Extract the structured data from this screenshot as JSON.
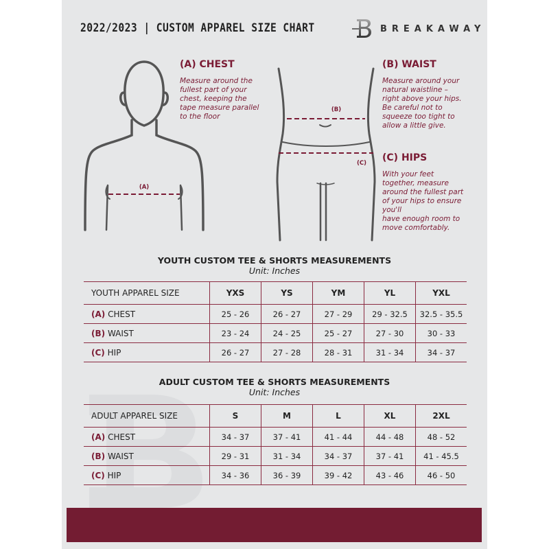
{
  "header": {
    "title": "2022/2023  |  CUSTOM APPAREL SIZE CHART",
    "brand": "BREAKAWAY"
  },
  "colors": {
    "accent": "#7a1b34",
    "background": "#e6e7e8",
    "footer": "#731c32"
  },
  "chest": {
    "heading": "(A) CHEST",
    "lines": [
      "Measure around the",
      "fullest part of your",
      "chest, keeping the",
      "tape measure parallel",
      "to the floor"
    ],
    "marker": "(A)"
  },
  "waist": {
    "heading": "(B) WAIST",
    "lines": [
      "Measure around your",
      "natural waistline –",
      "right above your hips.",
      "Be careful not to",
      "squeeze too tight to",
      "allow a little give."
    ],
    "marker": "(B)"
  },
  "hips": {
    "heading": "(C) HIPS",
    "lines": [
      "With your feet",
      "together, measure",
      "around the fullest part",
      "of your hips to ensure",
      "you'll",
      "have enough room to",
      "move comfortably."
    ],
    "marker": "(C)"
  },
  "youth": {
    "title": "YOUTH CUSTOM TEE & SHORTS MEASUREMENTS",
    "unit": "Unit: Inches",
    "header_label": "YOUTH APPAREL SIZE",
    "sizes": [
      "YXS",
      "YS",
      "YM",
      "YL",
      "YXL"
    ],
    "rows": [
      {
        "code": "(A)",
        "name": "CHEST",
        "values": [
          "25 - 26",
          "26 - 27",
          "27 - 29",
          "29 - 32.5",
          "32.5 - 35.5"
        ]
      },
      {
        "code": "(B)",
        "name": "WAIST",
        "values": [
          "23 - 24",
          "24 - 25",
          "25 - 27",
          "27 - 30",
          "30 - 33"
        ]
      },
      {
        "code": "(C)",
        "name": "HIP",
        "values": [
          "26 - 27",
          "27 - 28",
          "28 - 31",
          "31 - 34",
          "34 - 37"
        ]
      }
    ]
  },
  "adult": {
    "title": "ADULT CUSTOM TEE & SHORTS MEASUREMENTS",
    "unit": "Unit: Inches",
    "header_label": "ADULT APPAREL SIZE",
    "sizes": [
      "S",
      "M",
      "L",
      "XL",
      "2XL"
    ],
    "rows": [
      {
        "code": "(A)",
        "name": "CHEST",
        "values": [
          "34 - 37",
          "37 - 41",
          "41 - 44",
          "44 - 48",
          "48 - 52"
        ]
      },
      {
        "code": "(B)",
        "name": "WAIST",
        "values": [
          "29 - 31",
          "31 - 34",
          "34 - 37",
          "37 - 41",
          "41 - 45.5"
        ]
      },
      {
        "code": "(C)",
        "name": "HIP",
        "values": [
          "34 - 36",
          "36 - 39",
          "39 - 42",
          "43 - 46",
          "46 - 50"
        ]
      }
    ]
  }
}
